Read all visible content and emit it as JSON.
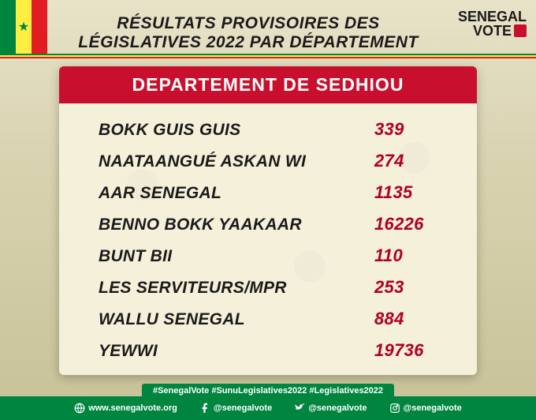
{
  "header": {
    "title": "RÉSULTATS PROVISOIRES DES LÉGISLATIVES 2022 PAR DÉPARTEMENT",
    "logo_line1": "SENEGAL",
    "logo_line2": "VOTE"
  },
  "card": {
    "title": "DEPARTEMENT DE SEDHIOU",
    "bg_color": "#f5f0da",
    "header_bg": "#c8102e",
    "value_color": "#b00020",
    "label_color": "#1a1a1a",
    "rows": [
      {
        "party": "BOKK GUIS GUIS",
        "votes": "339"
      },
      {
        "party": "NAATAANGUÉ ASKAN WI",
        "votes": "274"
      },
      {
        "party": "AAR SENEGAL",
        "votes": "1135"
      },
      {
        "party": "BENNO BOKK YAAKAAR",
        "votes": "16226"
      },
      {
        "party": "BUNT BII",
        "votes": "110"
      },
      {
        "party": "LES SERVITEURS/MPR",
        "votes": "253"
      },
      {
        "party": "WALLU SENEGAL",
        "votes": "884"
      },
      {
        "party": "YEWWI",
        "votes": "19736"
      }
    ]
  },
  "footer": {
    "hashtags": "#SenegalVote   #SunuLegislatives2022   #Legislatives2022",
    "website": "www.senegalvote.org",
    "facebook": "@senegalvote",
    "twitter": "@senegalvote",
    "instagram": "@senegalvote"
  },
  "colors": {
    "flag_green": "#00853f",
    "flag_yellow": "#fdef42",
    "flag_red": "#e31b23"
  }
}
